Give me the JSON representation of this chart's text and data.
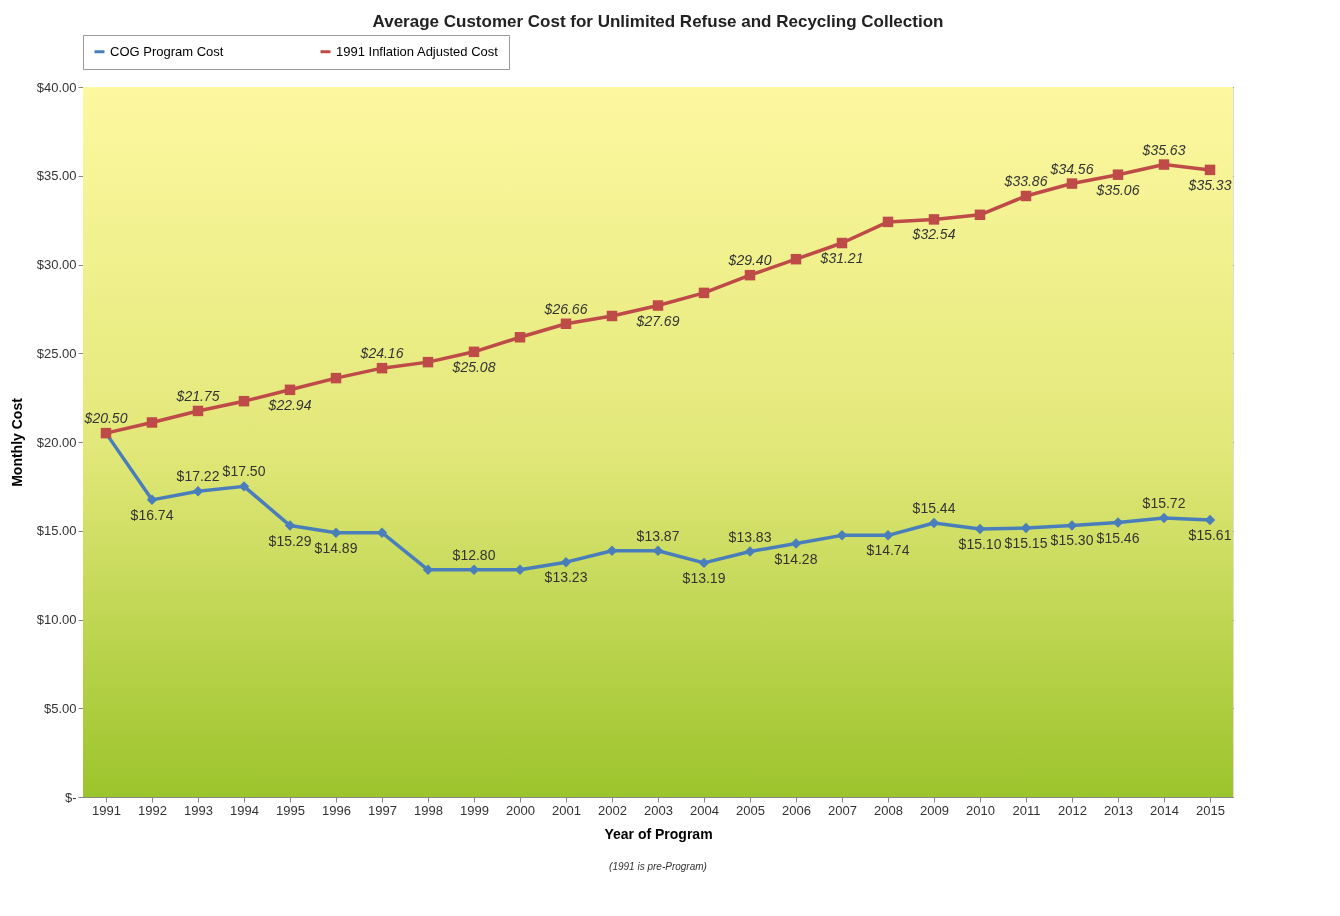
{
  "chart_data": {
    "type": "line",
    "title": "Average Customer Cost for Unlimited Refuse and Recycling Collection",
    "xlabel": "Year of Program",
    "ylabel": "Monthly Cost",
    "annotations": [
      "(1991 is pre-Program)"
    ],
    "categories": [
      "1991",
      "1992",
      "1993",
      "1994",
      "1995",
      "1996",
      "1997",
      "1998",
      "1999",
      "2000",
      "2001",
      "2002",
      "2003",
      "2004",
      "2005",
      "2006",
      "2007",
      "2008",
      "2009",
      "2010",
      "2011",
      "2012",
      "2013",
      "2014",
      "2015"
    ],
    "series": [
      {
        "name": "COG Program Cost",
        "color": "#4a7ebb",
        "marker": "diamond",
        "values": [
          20.5,
          16.74,
          17.22,
          17.5,
          15.29,
          14.89,
          14.89,
          12.8,
          12.8,
          12.8,
          13.23,
          13.87,
          13.87,
          13.19,
          13.83,
          14.28,
          14.74,
          14.74,
          15.44,
          15.1,
          15.15,
          15.3,
          15.46,
          15.72,
          15.61
        ],
        "value_labels": [
          null,
          "$16.74",
          "$17.22",
          "$17.50",
          "$15.29",
          "$14.89",
          null,
          null,
          "$12.80",
          null,
          "$13.23",
          null,
          "$13.87",
          "$13.19",
          "$13.83",
          "$14.28",
          null,
          "$14.74",
          "$15.44",
          "$15.10",
          "$15.15",
          "$15.30",
          "$15.46",
          "$15.72",
          "$15.61"
        ]
      },
      {
        "name": "1991 Inflation Adjusted Cost",
        "color": "#be4b48",
        "marker": "square",
        "values": [
          20.5,
          21.1,
          21.75,
          22.3,
          22.94,
          23.6,
          24.16,
          24.5,
          25.08,
          25.9,
          26.66,
          27.1,
          27.69,
          28.4,
          29.4,
          30.3,
          31.21,
          32.4,
          32.54,
          32.8,
          33.86,
          34.56,
          35.06,
          35.63,
          35.33
        ],
        "value_labels": [
          "$20.50",
          null,
          "$21.75",
          null,
          "$22.94",
          null,
          "$24.16",
          null,
          "$25.08",
          null,
          "$26.66",
          null,
          "$27.69",
          null,
          "$29.40",
          null,
          "$31.21",
          null,
          "$32.54",
          null,
          "$33.86",
          "$34.56",
          "$35.06",
          "$35.63",
          "$35.33"
        ]
      }
    ],
    "ylim": [
      0,
      40
    ],
    "yticks": [
      {
        "value": 0,
        "label": "$-"
      },
      {
        "value": 5,
        "label": "$5.00"
      },
      {
        "value": 10,
        "label": "$10.00"
      },
      {
        "value": 15,
        "label": "$15.00"
      },
      {
        "value": 20,
        "label": "$20.00"
      },
      {
        "value": 25,
        "label": "$25.00"
      },
      {
        "value": 30,
        "label": "$30.00"
      },
      {
        "value": 35,
        "label": "$35.00"
      },
      {
        "value": 40,
        "label": "$40.00"
      }
    ],
    "grid": "y",
    "legend": "top",
    "line_style": "solid"
  }
}
